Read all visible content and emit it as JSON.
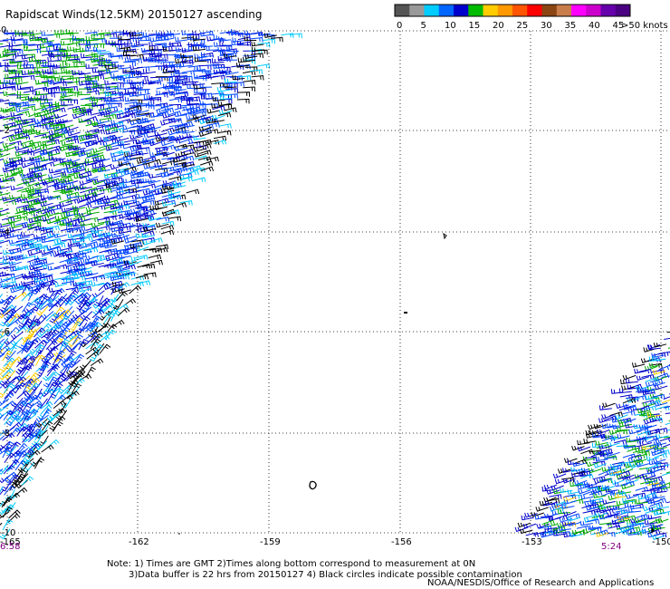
{
  "title": "Rapidscat Winds(12.5KM) 20150127 ascending",
  "legend": {
    "colors": [
      "#555555",
      "#999999",
      "#00ccff",
      "#0066ff",
      "#0000cc",
      "#00bb00",
      "#ffcc00",
      "#ff9900",
      "#ff5500",
      "#ff0000",
      "#8b4513",
      "#c87d4a",
      "#ff00ff",
      "#cc00cc",
      "#6600aa",
      "#4b0082"
    ],
    "ticks": [
      "0",
      "5",
      "10",
      "15",
      "20",
      "25",
      "30",
      "35",
      "40",
      "45"
    ],
    "end_label": ">50 knots"
  },
  "map": {
    "lon_labels": [
      "-165",
      "-162",
      "-159",
      "-156",
      "-153",
      "-150"
    ],
    "lat_labels": [
      "0",
      "-2",
      "-4",
      "-6",
      "-8",
      "-10"
    ]
  },
  "times": {
    "left": "6:58",
    "right": "5:24"
  },
  "notes": [
    "Note: 1) Times are GMT 2)Times along bottom correspond to measurement at 0N",
    "3)Data buffer is 22 hrs from 20150127 4) Black circles indicate possible contamination"
  ],
  "credit": "NOAA/NESDIS/Office of Research and Applications"
}
